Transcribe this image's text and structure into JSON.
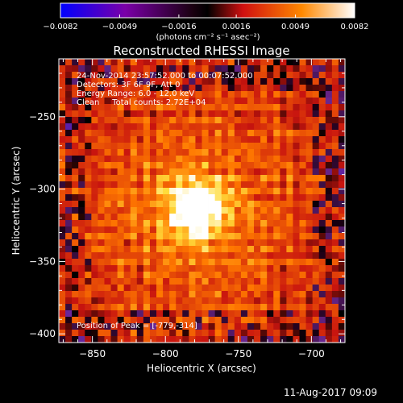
{
  "chart_data": {
    "type": "heatmap",
    "title": "Reconstructed RHESSI Image",
    "xlabel": "Heliocentric X (arcsec)",
    "ylabel": "Heliocentric Y (arcsec)",
    "xlim": [
      -873,
      -677
    ],
    "ylim": [
      -406,
      -210
    ],
    "x_ticks": [
      -850,
      -800,
      -750,
      -700
    ],
    "x_tick_labels": [
      "−850",
      "−800",
      "−750",
      "−700"
    ],
    "y_ticks": [
      -250,
      -300,
      -350,
      -400
    ],
    "y_tick_labels": [
      "−250",
      "−300",
      "−350",
      "−400"
    ],
    "colorbar": {
      "range": [
        -0.0082,
        0.0082
      ],
      "ticks": [
        -0.0082,
        -0.0049,
        -0.0016,
        0.0016,
        0.0049,
        0.0082
      ],
      "tick_labels": [
        "−0.0082",
        "−0.0049",
        "−0.0016",
        "0.0016",
        "0.0049",
        "0.0082"
      ],
      "unit_label": "(photons cm⁻² s⁻¹ asec⁻²)",
      "colors": [
        "#0000ff",
        "#7a00a8",
        "#000000",
        "#d01010",
        "#ff8800",
        "#ffffff"
      ]
    },
    "info_lines": [
      "24-Nov-2014 23:57:52.000 to 00:07:52.000",
      "Detectors: 3F 6F 9F, Att 0",
      "Energy Range: 6.0 - 12.0 keV",
      "Clean     Total counts: 2.72E+04"
    ],
    "peak_label": "Position of Peak = [-779,-314]",
    "peak_position": [
      -779,
      -314
    ],
    "grid": false
  },
  "footer": {
    "timestamp": "11-Aug-2017 09:09"
  }
}
